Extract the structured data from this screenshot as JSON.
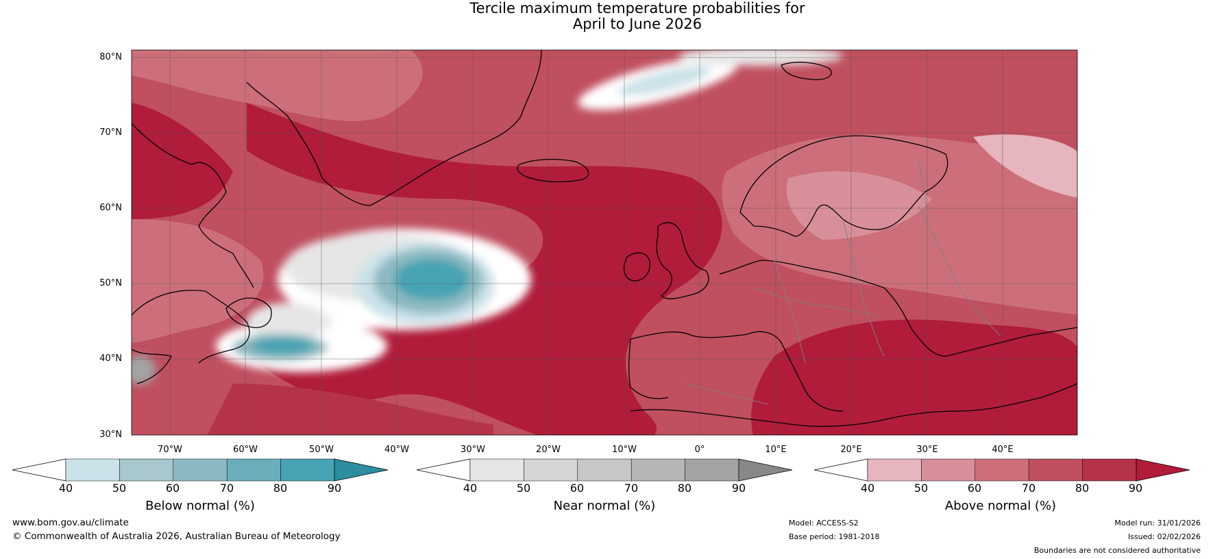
{
  "title": {
    "line1": "Tercile maximum temperature probabilities for",
    "line2": "April to June 2026"
  },
  "axes": {
    "lat_labels": [
      "80°N",
      "70°N",
      "60°N",
      "50°N",
      "40°N",
      "30°N"
    ],
    "lon_labels": [
      "70°W",
      "60°W",
      "50°W",
      "40°W",
      "30°W",
      "20°W",
      "10°W",
      "0°",
      "10°E",
      "20°E",
      "30°E",
      "40°E"
    ]
  },
  "colorbars": {
    "below": {
      "title": "Below normal (%)",
      "ticks": [
        "40",
        "50",
        "60",
        "70",
        "80",
        "90"
      ],
      "colors": [
        "#ffffff",
        "#cbe2e9",
        "#a9c8ce",
        "#8cb9c1",
        "#6aaebb",
        "#47a3b3",
        "#2c8e9f"
      ]
    },
    "near": {
      "title": "Near normal (%)",
      "ticks": [
        "40",
        "50",
        "60",
        "70",
        "80",
        "90"
      ],
      "colors": [
        "#ffffff",
        "#e6e6e6",
        "#d6d6d6",
        "#c7c7c7",
        "#b6b6b6",
        "#a3a3a3",
        "#888888"
      ]
    },
    "above": {
      "title": "Above normal (%)",
      "ticks": [
        "40",
        "50",
        "60",
        "70",
        "80",
        "90"
      ],
      "colors": [
        "#ffffff",
        "#e6b5bd",
        "#d88f99",
        "#cc6f7b",
        "#c04f60",
        "#b5334a",
        "#b01c3a"
      ]
    }
  },
  "footer": {
    "website": "www.bom.gov.au/climate",
    "copyright": "© Commonwealth of Australia 2026, Australian Bureau of Meteorology",
    "model": "Model: ACCESS-S2",
    "base_period": "Base period: 1981-2018",
    "model_run": "Model run: 31/01/2026",
    "issued": "Issued: 02/02/2026",
    "disclaimer": "Boundaries are not considered authoritative"
  }
}
